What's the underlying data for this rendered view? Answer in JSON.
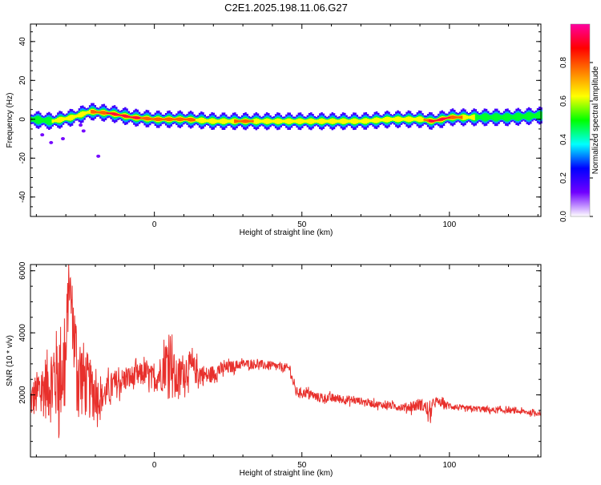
{
  "title": "C2E1.2025.198.11.06.G27",
  "colors": {
    "snr_line": "#e8302c",
    "axis": "#000000",
    "background": "#ffffff"
  },
  "chart_data": [
    {
      "type": "heatmap",
      "title": "C2E1.2025.198.11.06.G27",
      "xlabel": "Height of straight line (km)",
      "ylabel": "Frequency (Hz)",
      "xlim": [
        -42,
        131
      ],
      "ylim": [
        -50,
        49
      ],
      "xticks": [
        0,
        50,
        100
      ],
      "yticks": [
        -40,
        -20,
        0,
        20,
        40
      ],
      "colorbar": {
        "label": "Normalized spectral amplitude",
        "range": [
          0,
          1
        ],
        "ticks": [
          "0.0",
          "0.2",
          "0.4",
          "0.6",
          "0.8"
        ],
        "colormap": [
          "#ffffff",
          "#7000ff",
          "#0000ff",
          "#00ffff",
          "#00ff00",
          "#ffff00",
          "#ff8000",
          "#ff0000",
          "#ff00a0"
        ]
      },
      "ridge": {
        "description_points_x": [
          -42,
          -35,
          -28,
          -22,
          -15,
          -8,
          0,
          10,
          20,
          30,
          40,
          50,
          60,
          70,
          80,
          90,
          94,
          100,
          110,
          120,
          131
        ],
        "center_freq_hz": [
          0,
          -1,
          1,
          4,
          3,
          1,
          0,
          0,
          -1,
          -1,
          -1,
          -1,
          -1,
          -1,
          0,
          0,
          -1,
          1,
          1,
          1,
          2
        ],
        "peak_amplitude": [
          0.45,
          0.55,
          0.6,
          0.7,
          0.9,
          0.95,
          0.7,
          0.75,
          0.6,
          0.75,
          0.6,
          0.55,
          0.55,
          0.55,
          0.55,
          0.6,
          0.95,
          0.85,
          0.5,
          0.5,
          0.5
        ]
      }
    },
    {
      "type": "line",
      "xlabel": "Height of straight line (km)",
      "ylabel": "SNR (10 * v/v)",
      "xlim": [
        -42,
        131
      ],
      "ylim": [
        0,
        6200
      ],
      "xticks": [
        0,
        50,
        100
      ],
      "yticks": [
        2000,
        4000,
        6000
      ],
      "series": [
        {
          "x": [
            -42,
            -38,
            -34,
            -30,
            -29,
            -26,
            -22,
            -18,
            -14,
            -10,
            -6,
            -3,
            0,
            3,
            5,
            6,
            7,
            10,
            12,
            15,
            18,
            22,
            26,
            30,
            34,
            38,
            42,
            46,
            47,
            48,
            52,
            56,
            60,
            65,
            70,
            75,
            80,
            85,
            88,
            90,
            92,
            93,
            95,
            100,
            105,
            110,
            115,
            120,
            125,
            131
          ],
          "y": [
            1800,
            2200,
            2500,
            3000,
            5800,
            2800,
            2200,
            1900,
            2300,
            2500,
            2600,
            2700,
            2500,
            2800,
            3300,
            3200,
            2400,
            2800,
            2900,
            2700,
            2600,
            2800,
            2900,
            3000,
            3000,
            2950,
            2900,
            2850,
            2400,
            2100,
            2050,
            1900,
            1900,
            1850,
            1800,
            1700,
            1650,
            1600,
            1650,
            1700,
            1600,
            1300,
            1800,
            1650,
            1550,
            1550,
            1500,
            1500,
            1450,
            1400
          ],
          "noise_amplitude": [
            600,
            900,
            1500,
            1800,
            800,
            1500,
            1000,
            500,
            500,
            400,
            400,
            400,
            400,
            700,
            900,
            900,
            700,
            600,
            500,
            400,
            300,
            250,
            200,
            150,
            150,
            150,
            150,
            150,
            150,
            150,
            150,
            150,
            150,
            150,
            120,
            120,
            120,
            140,
            200,
            200,
            200,
            300,
            150,
            120,
            100,
            100,
            100,
            90,
            90,
            80
          ]
        }
      ]
    }
  ]
}
